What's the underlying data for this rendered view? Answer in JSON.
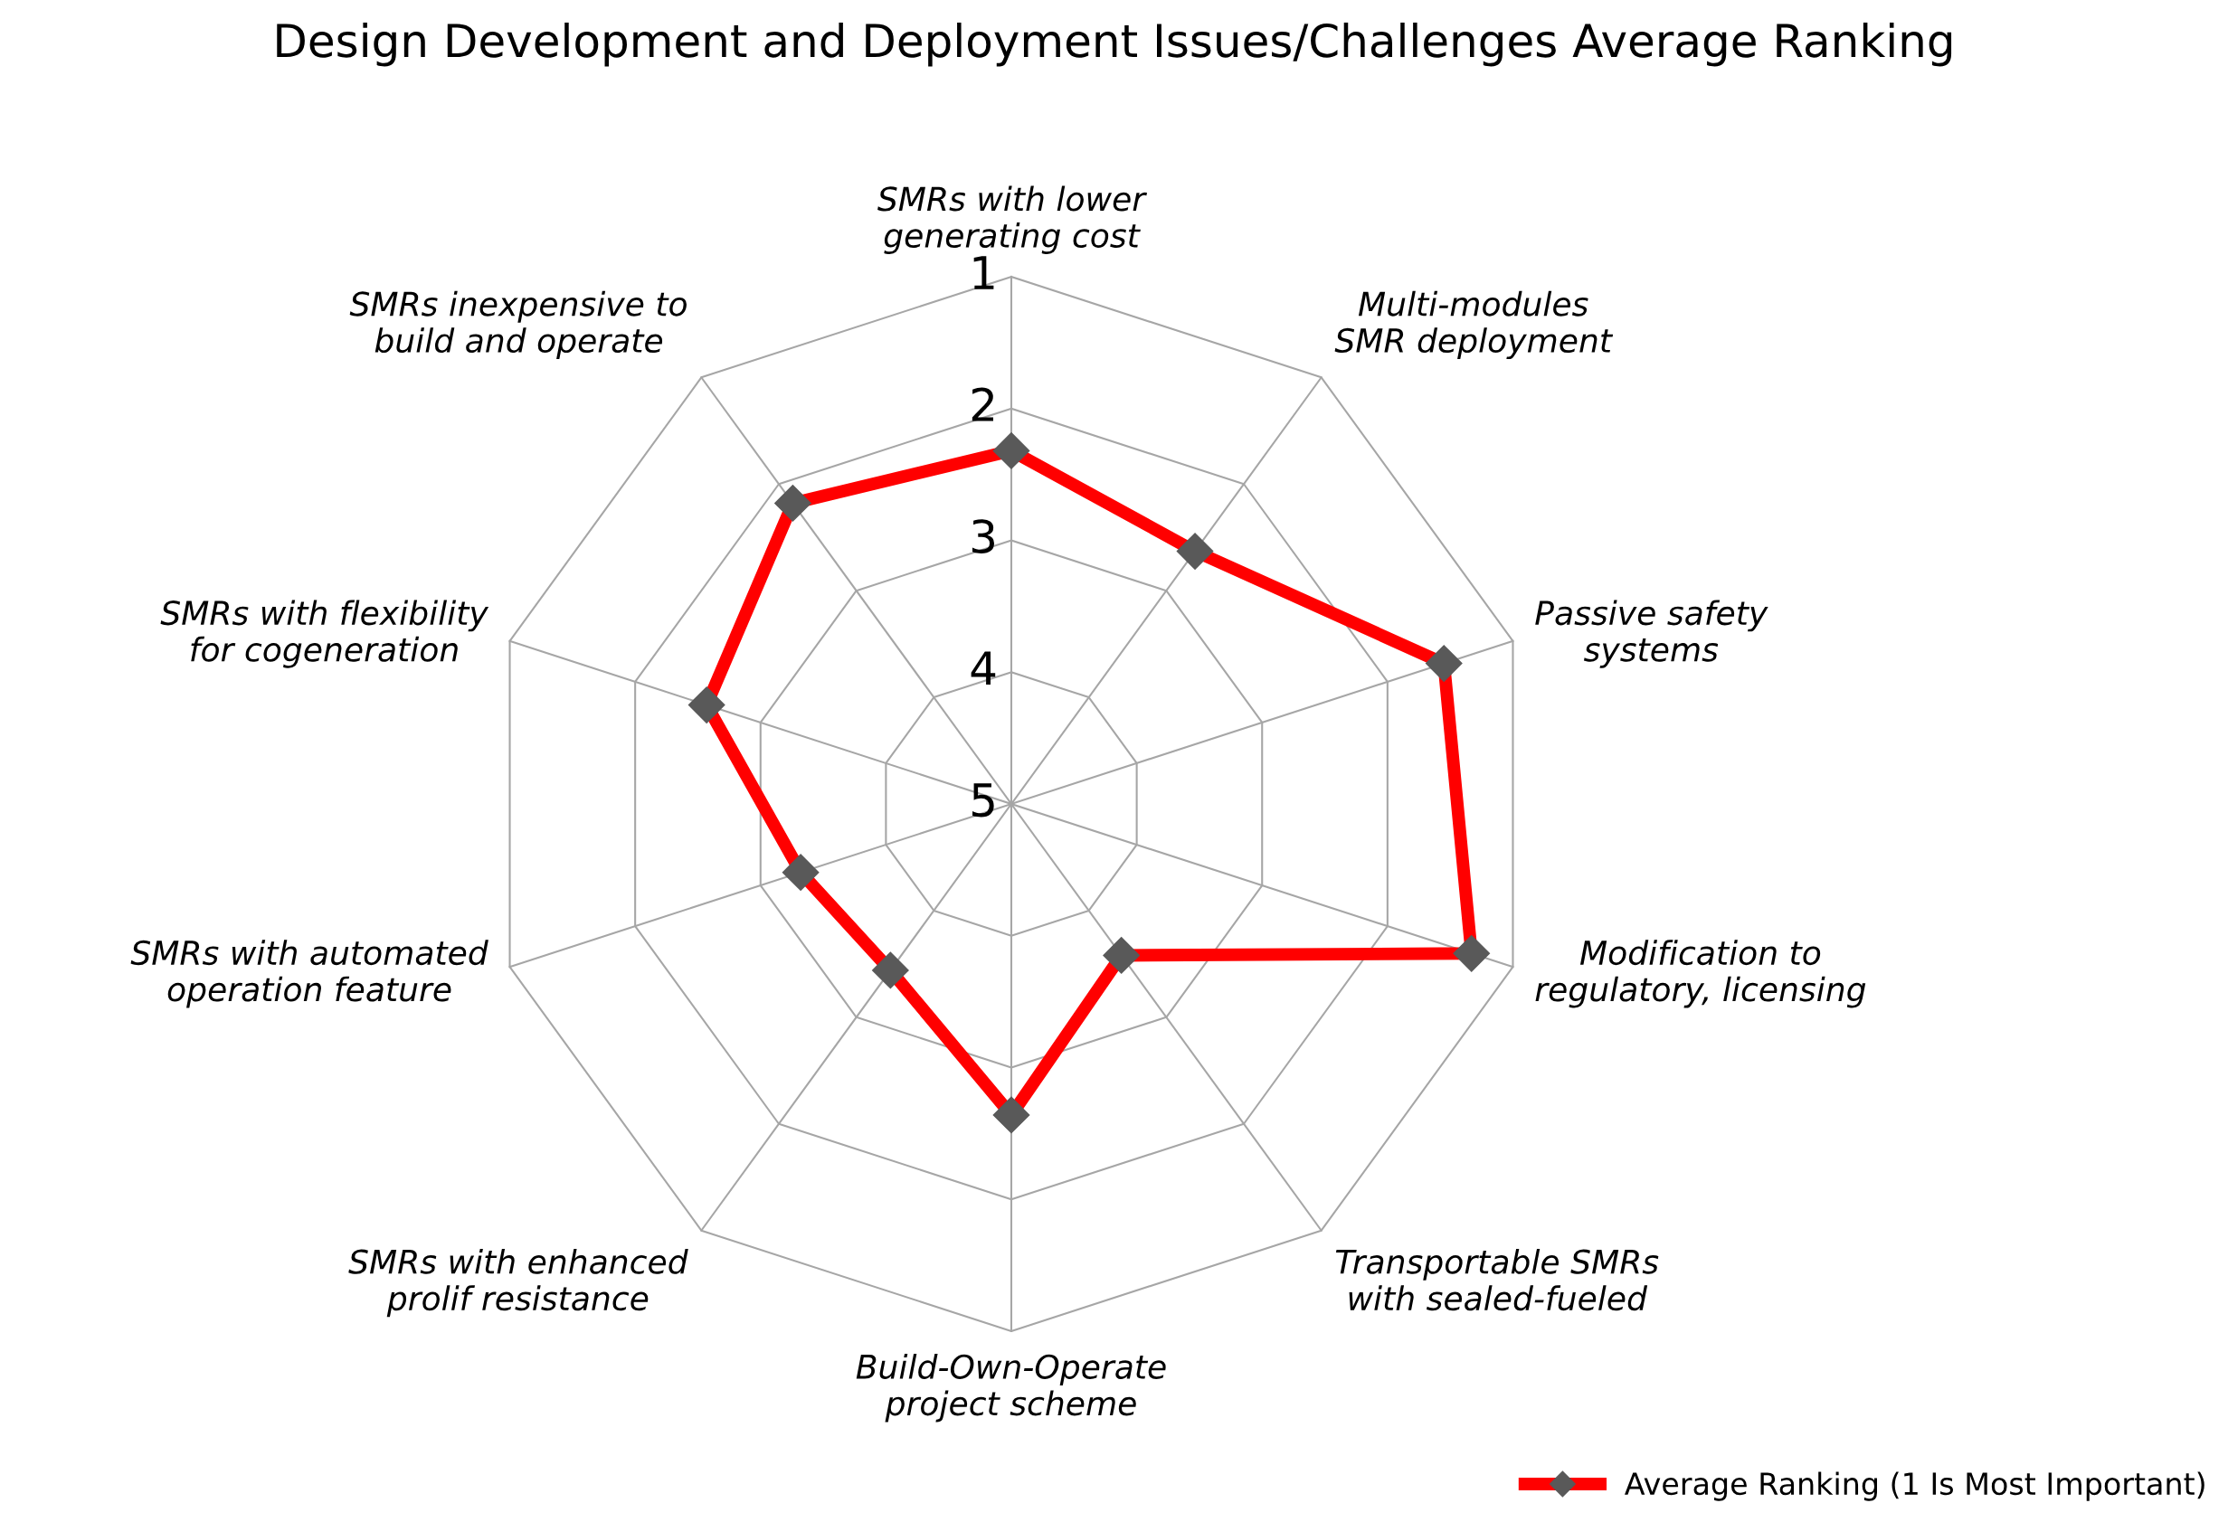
{
  "chart_data": {
    "type": "radar",
    "title": "Design Development and Deployment Issues/Challenges Average Ranking",
    "categories": [
      "SMRs with lower generating cost",
      "Multi-modules SMR deployment",
      "Passive safety systems",
      "Modification to regulatory, licensing",
      "Transportable SMRs with sealed-fueled",
      "Build-Own-Operate project scheme",
      "SMRs with enhanced prolif resistance",
      "SMRs with automated operation feature",
      "SMRs with flexibility for cogeneration",
      "SMRs inexpensive to build and operate"
    ],
    "series": [
      {
        "name": "Average Ranking (1 Is Most Important)",
        "color": "#ff0000",
        "values": [
          2.32,
          2.63,
          1.55,
          1.33,
          3.58,
          2.64,
          3.44,
          3.32,
          2.57,
          2.18
        ]
      }
    ],
    "ylim": [
      5,
      1
    ],
    "yticks": [
      1,
      2,
      3,
      4,
      5
    ],
    "grid": true,
    "legend": "bottom right",
    "marker": "diamond",
    "line_style": "solid"
  }
}
